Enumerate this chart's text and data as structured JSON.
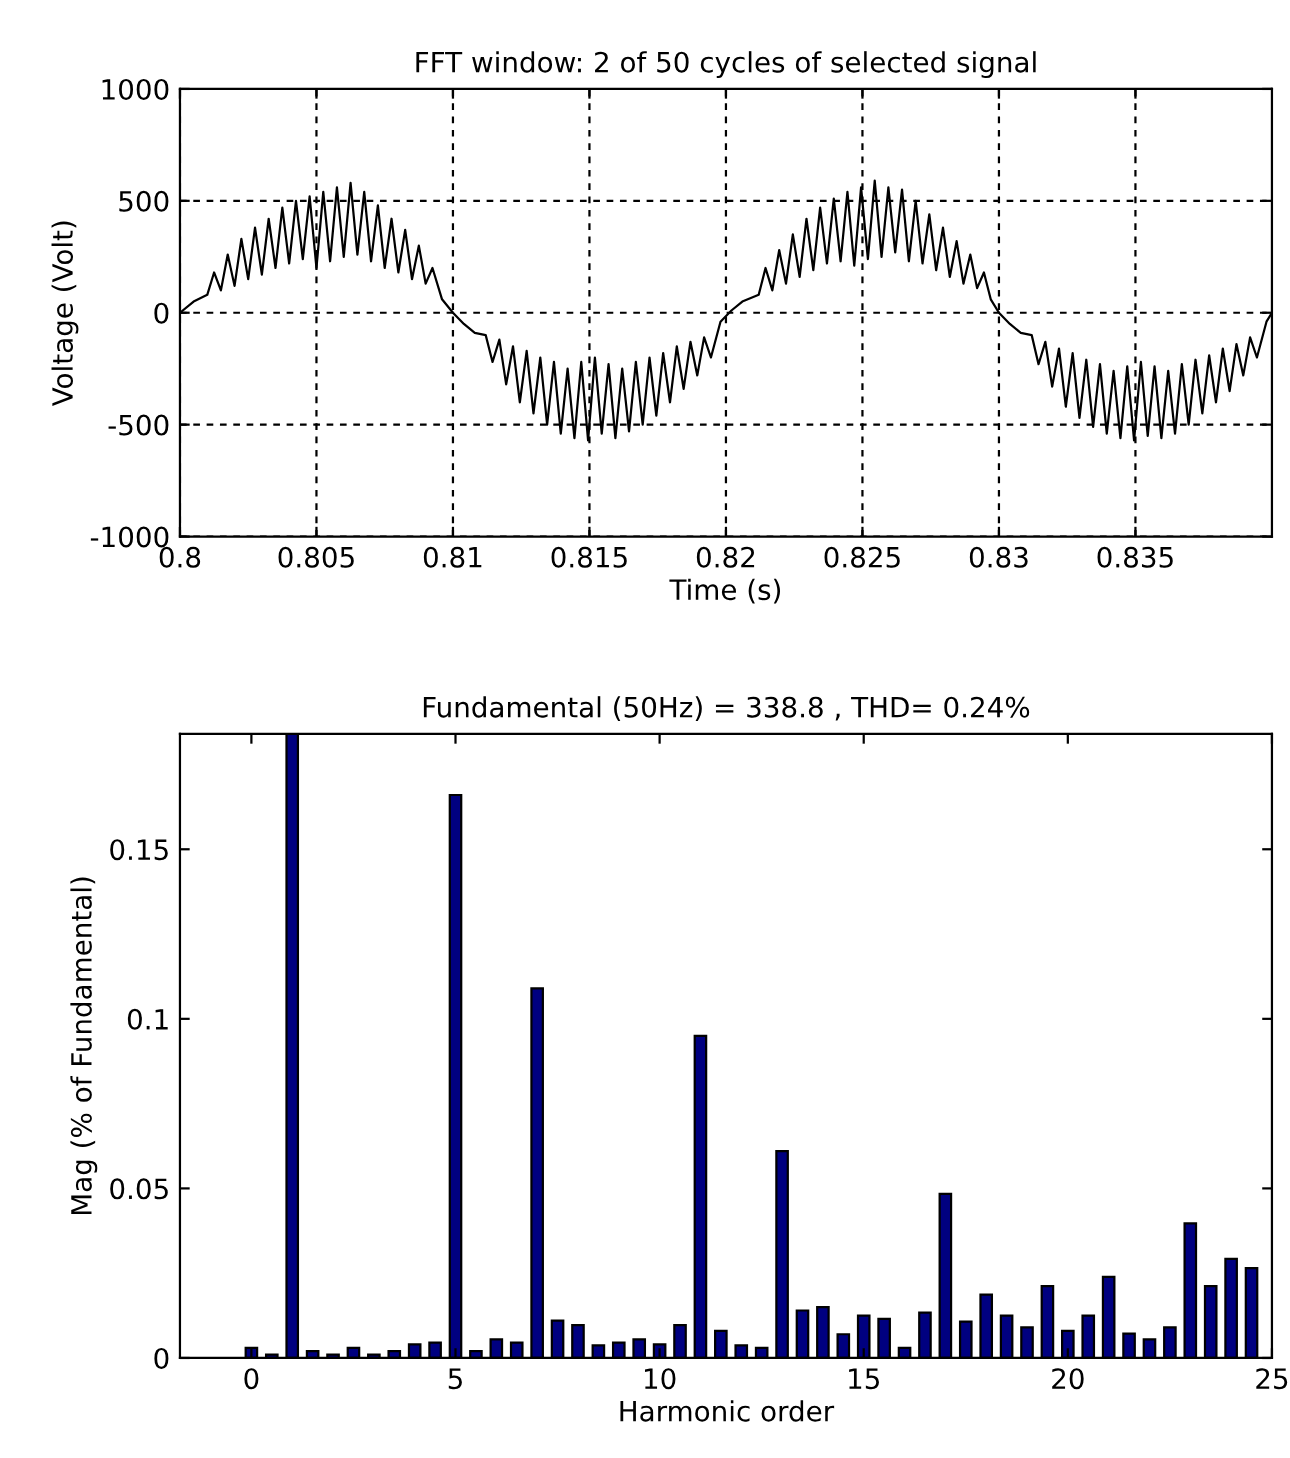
{
  "chart_data": [
    {
      "type": "line",
      "title": "FFT window: 2 of 50 cycles of selected signal",
      "xlabel": "Time (s)",
      "ylabel": "Voltage (Volt)",
      "xlim": [
        0.8,
        0.84
      ],
      "ylim": [
        -1000,
        1000
      ],
      "xticks": [
        0.8,
        0.805,
        0.81,
        0.815,
        0.82,
        0.825,
        0.83,
        0.835
      ],
      "yticks": [
        -1000,
        -500,
        0,
        500,
        1000
      ],
      "grid": true,
      "legend": false,
      "series": [
        {
          "color": "#000000",
          "x": [
            0.8,
            0.8005,
            0.801,
            0.80125,
            0.8015,
            0.80175,
            0.802,
            0.80225,
            0.8025,
            0.80275,
            0.803,
            0.80325,
            0.8035,
            0.80375,
            0.804,
            0.80425,
            0.8045,
            0.80475,
            0.805,
            0.80525,
            0.8055,
            0.80575,
            0.806,
            0.80625,
            0.8065,
            0.80675,
            0.807,
            0.80725,
            0.8075,
            0.80775,
            0.808,
            0.80825,
            0.8085,
            0.80875,
            0.809,
            0.80925,
            0.8096,
            0.81,
            0.8104,
            0.8108,
            0.8112,
            0.81145,
            0.8117,
            0.81195,
            0.8122,
            0.81245,
            0.8127,
            0.81295,
            0.8132,
            0.81345,
            0.8137,
            0.81395,
            0.8142,
            0.81445,
            0.8147,
            0.81495,
            0.8152,
            0.81545,
            0.8157,
            0.81595,
            0.8162,
            0.81645,
            0.8167,
            0.81695,
            0.8172,
            0.81745,
            0.8177,
            0.81795,
            0.8182,
            0.81845,
            0.8187,
            0.81895,
            0.8192,
            0.81945,
            0.8198,
            0.8202,
            0.8206,
            0.8212,
            0.82145,
            0.8217,
            0.82195,
            0.8222,
            0.82245,
            0.8227,
            0.82295,
            0.8232,
            0.82345,
            0.8237,
            0.82395,
            0.8242,
            0.82445,
            0.8247,
            0.82495,
            0.8252,
            0.82545,
            0.8257,
            0.82595,
            0.8262,
            0.82645,
            0.8267,
            0.82695,
            0.8272,
            0.82745,
            0.8277,
            0.82795,
            0.8282,
            0.82845,
            0.8287,
            0.82895,
            0.8292,
            0.82945,
            0.8297,
            0.83,
            0.8304,
            0.8308,
            0.8312,
            0.83145,
            0.8317,
            0.83195,
            0.8322,
            0.83245,
            0.8327,
            0.83295,
            0.8332,
            0.83345,
            0.8337,
            0.83395,
            0.8342,
            0.83445,
            0.8347,
            0.83495,
            0.8352,
            0.83545,
            0.8357,
            0.83595,
            0.8362,
            0.83645,
            0.8367,
            0.83695,
            0.8372,
            0.83745,
            0.8377,
            0.83795,
            0.8382,
            0.83845,
            0.8387,
            0.83895,
            0.8392,
            0.83945,
            0.8398,
            0.84
          ],
          "values": [
            0,
            50,
            80,
            180,
            100,
            260,
            120,
            330,
            150,
            380,
            170,
            420,
            200,
            470,
            220,
            500,
            240,
            520,
            200,
            540,
            230,
            560,
            250,
            580,
            260,
            540,
            230,
            480,
            200,
            420,
            180,
            370,
            150,
            300,
            130,
            200,
            60,
            0,
            -50,
            -90,
            -100,
            -220,
            -120,
            -320,
            -150,
            -400,
            -170,
            -450,
            -200,
            -500,
            -220,
            -540,
            -250,
            -560,
            -220,
            -570,
            -200,
            -540,
            -230,
            -560,
            -250,
            -530,
            -220,
            -500,
            -200,
            -460,
            -180,
            -400,
            -150,
            -340,
            -130,
            -280,
            -110,
            -200,
            -40,
            10,
            50,
            80,
            200,
            100,
            280,
            130,
            350,
            160,
            420,
            190,
            470,
            220,
            510,
            230,
            540,
            210,
            560,
            240,
            590,
            250,
            560,
            270,
            550,
            230,
            500,
            220,
            440,
            190,
            380,
            160,
            320,
            130,
            260,
            110,
            180,
            60,
            0,
            -50,
            -90,
            -100,
            -230,
            -130,
            -330,
            -160,
            -420,
            -180,
            -470,
            -210,
            -510,
            -230,
            -540,
            -260,
            -560,
            -240,
            -570,
            -220,
            -550,
            -240,
            -560,
            -260,
            -540,
            -230,
            -500,
            -210,
            -450,
            -190,
            -400,
            -160,
            -350,
            -140,
            -280,
            -110,
            -200,
            -40,
            0
          ]
        }
      ]
    },
    {
      "type": "bar",
      "title": "Fundamental (50Hz) = 338.8 , THD= 0.24%",
      "xlabel": "Harmonic order",
      "ylabel": "Mag (% of Fundamental)",
      "xlim": [
        -1.75,
        25
      ],
      "ylim": [
        0,
        0.184
      ],
      "xticks": [
        0,
        5,
        10,
        15,
        20,
        25
      ],
      "yticks": [
        0,
        0.05,
        0.1,
        0.15
      ],
      "legend": false,
      "x": [
        0,
        0.5,
        1,
        1.5,
        2,
        2.5,
        3,
        3.5,
        4,
        4.5,
        5,
        5.5,
        6,
        6.5,
        7,
        7.5,
        8,
        8.5,
        9,
        9.5,
        10,
        10.5,
        11,
        11.5,
        12,
        12.5,
        13,
        13.5,
        14,
        14.5,
        15,
        15.5,
        16,
        16.5,
        17,
        17.5,
        18,
        18.5,
        19,
        19.5,
        20,
        20.5,
        21,
        21.5,
        22,
        22.5,
        23,
        23.5,
        24,
        24.5
      ],
      "series": [
        {
          "color": "#000080",
          "values": [
            0.003,
            0.001,
            0.184,
            0.002,
            0.001,
            0.003,
            0.001,
            0.002,
            0.004,
            0.0045,
            0.166,
            0.002,
            0.0055,
            0.0045,
            0.109,
            0.011,
            0.0097,
            0.0037,
            0.0045,
            0.0055,
            0.004,
            0.0097,
            0.095,
            0.008,
            0.0037,
            0.003,
            0.061,
            0.014,
            0.015,
            0.007,
            0.0125,
            0.0115,
            0.003,
            0.0134,
            0.0484,
            0.0107,
            0.0187,
            0.0125,
            0.009,
            0.0212,
            0.008,
            0.0125,
            0.0239,
            0.0072,
            0.0055,
            0.009,
            0.0397,
            0.0212,
            0.0292,
            0.0265
          ]
        }
      ]
    }
  ]
}
